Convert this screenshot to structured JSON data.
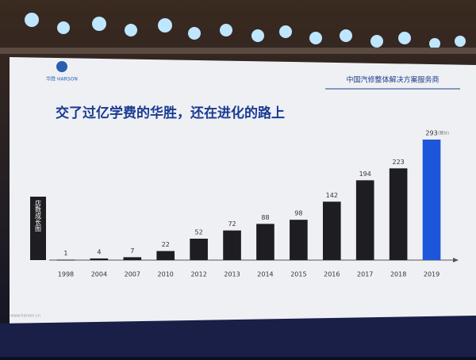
{
  "header": {
    "logo": "华胜 HARSON",
    "tagline": "中国汽修整体解决方案服务商"
  },
  "footer": "www.harson.cn",
  "chart_data": {
    "type": "bar",
    "title": "交了过亿学费的华胜，还在进化的路上",
    "side_label": "店数成长图",
    "categories": [
      "1998",
      "2004",
      "2007",
      "2010",
      "2012",
      "2013",
      "2014",
      "2015",
      "2016",
      "2017",
      "2018",
      "2019"
    ],
    "values": [
      1,
      4,
      7,
      22,
      52,
      72,
      88,
      98,
      142,
      194,
      223,
      293
    ],
    "colors": [
      "#1e1e22",
      "#1e1e22",
      "#1e1e22",
      "#1e1e22",
      "#1e1e22",
      "#1e1e22",
      "#1e1e22",
      "#1e1e22",
      "#1e1e22",
      "#1e1e22",
      "#1e1e22",
      "#1d56d8"
    ],
    "annotation": "(预计)"
  }
}
